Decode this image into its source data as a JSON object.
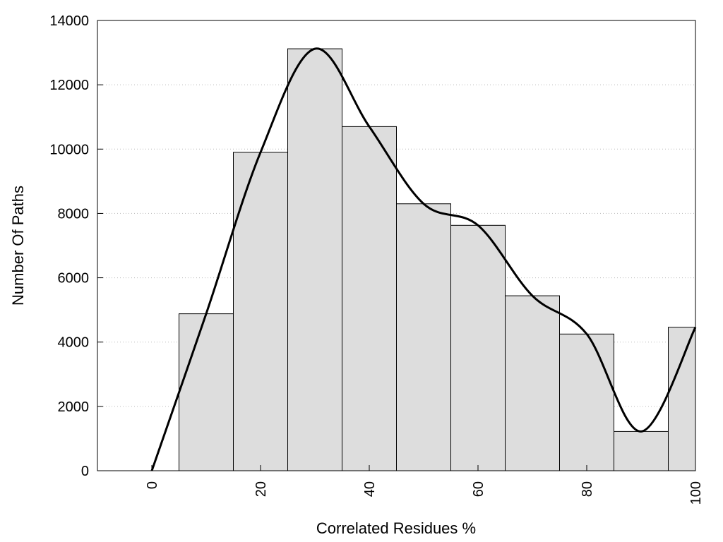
{
  "chart_data": {
    "type": "bar",
    "title": "",
    "xlabel": "Correlated Residues %",
    "ylabel": "Number Of Paths",
    "xlim": [
      -10,
      100
    ],
    "ylim": [
      0,
      14000
    ],
    "x_ticks": [
      0,
      20,
      40,
      60,
      80,
      100
    ],
    "y_ticks": [
      0,
      2000,
      4000,
      6000,
      8000,
      10000,
      12000,
      14000
    ],
    "grid": "horizontal dotted",
    "bins": [
      {
        "x0": 5,
        "x1": 15,
        "value": 4880
      },
      {
        "x0": 15,
        "x1": 25,
        "value": 9900
      },
      {
        "x0": 25,
        "x1": 35,
        "value": 13120
      },
      {
        "x0": 35,
        "x1": 45,
        "value": 10700
      },
      {
        "x0": 45,
        "x1": 55,
        "value": 8300
      },
      {
        "x0": 55,
        "x1": 65,
        "value": 7630
      },
      {
        "x0": 65,
        "x1": 75,
        "value": 5440
      },
      {
        "x0": 75,
        "x1": 85,
        "value": 4250
      },
      {
        "x0": 85,
        "x1": 95,
        "value": 1220
      },
      {
        "x0": 95,
        "x1": 100,
        "value": 4460
      }
    ],
    "curve": {
      "x": [
        0,
        10,
        20,
        30,
        40,
        50,
        60,
        70,
        80,
        90,
        100
      ],
      "values": [
        0,
        4880,
        9900,
        13120,
        10700,
        8300,
        7630,
        5440,
        4250,
        1220,
        4460
      ]
    },
    "colors": {
      "bar_fill": "#dddddd",
      "bar_stroke": "#000000",
      "curve": "#000000",
      "grid": "#bbbbbb"
    }
  }
}
